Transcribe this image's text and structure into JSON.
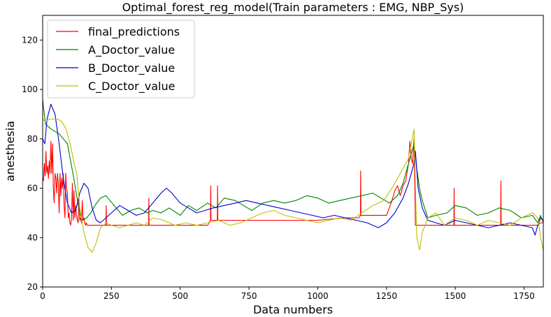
{
  "chart_data": {
    "type": "line",
    "title": "Optimal_forest_reg_model(Train parameters : EMG, NBP_Sys)",
    "xlabel": "Data numbers",
    "ylabel": "anesthesia",
    "xlim": [
      0,
      1820
    ],
    "ylim": [
      20,
      130
    ],
    "xticks": [
      0,
      250,
      500,
      750,
      1000,
      1250,
      1500,
      1750
    ],
    "yticks": [
      20,
      40,
      60,
      80,
      100,
      120
    ],
    "grid": false,
    "legend_position": "top-left",
    "series": [
      {
        "name": "final_predictions",
        "color": "#ff0000",
        "x": [
          0,
          3,
          6,
          9,
          12,
          15,
          18,
          21,
          24,
          27,
          30,
          33,
          36,
          39,
          42,
          45,
          48,
          51,
          54,
          57,
          60,
          63,
          66,
          69,
          72,
          75,
          78,
          81,
          84,
          87,
          90,
          93,
          96,
          99,
          102,
          105,
          108,
          111,
          114,
          117,
          120,
          123,
          126,
          129,
          132,
          135,
          138,
          141,
          144,
          147,
          150,
          153,
          156,
          159,
          162,
          165,
          168,
          171,
          174,
          177,
          180,
          183,
          186,
          189,
          195,
          200,
          230,
          231,
          232,
          240,
          300,
          385,
          386,
          387,
          395,
          500,
          600,
          610,
          611,
          612,
          625,
          635,
          636,
          637,
          645,
          700,
          800,
          900,
          950,
          1000,
          1100,
          1150,
          1155,
          1156,
          1157,
          1160,
          1200,
          1250,
          1270,
          1280,
          1290,
          1300,
          1310,
          1320,
          1330,
          1335,
          1340,
          1345,
          1350,
          1355,
          1360,
          1370,
          1400,
          1450,
          1495,
          1496,
          1497,
          1500,
          1550,
          1600,
          1665,
          1666,
          1667,
          1670,
          1700,
          1750,
          1790,
          1800,
          1810,
          1820
        ],
        "values": [
          64,
          63,
          70,
          65,
          75,
          66,
          69,
          64,
          71,
          66,
          79,
          66,
          78,
          60,
          54,
          66,
          64,
          58,
          66,
          62,
          50,
          66,
          57,
          64,
          60,
          66,
          53,
          48,
          66,
          60,
          58,
          48,
          50,
          46,
          45,
          48,
          62,
          47,
          59,
          48,
          53,
          49,
          47,
          46,
          57,
          47,
          48,
          46,
          55,
          47,
          48,
          46,
          45,
          46,
          45,
          45,
          45,
          45,
          45,
          45,
          45,
          45,
          45,
          45,
          45,
          45,
          45,
          53,
          45,
          45,
          45,
          45,
          56,
          45,
          45,
          45,
          45,
          47,
          61,
          47,
          47,
          47,
          61,
          47,
          47,
          47,
          47,
          47,
          47,
          47,
          48,
          48,
          49,
          67,
          49,
          49,
          49,
          49,
          55,
          59,
          61,
          57,
          61,
          63,
          70,
          79,
          72,
          70,
          80,
          45,
          45,
          45,
          45,
          45,
          45,
          60,
          45,
          45,
          45,
          45,
          45,
          63,
          45,
          45,
          45,
          45,
          45,
          45,
          46,
          46
        ]
      },
      {
        "name": "A_Doctor_value",
        "color": "#008000",
        "x": [
          0,
          10,
          30,
          60,
          90,
          110,
          125,
          135,
          145,
          160,
          175,
          190,
          210,
          230,
          260,
          290,
          320,
          350,
          380,
          400,
          430,
          460,
          500,
          530,
          560,
          600,
          630,
          660,
          700,
          730,
          760,
          800,
          840,
          880,
          920,
          960,
          1000,
          1040,
          1080,
          1120,
          1160,
          1200,
          1230,
          1260,
          1290,
          1310,
          1330,
          1350,
          1360,
          1370,
          1380,
          1400,
          1430,
          1470,
          1500,
          1540,
          1580,
          1620,
          1660,
          1700,
          1740,
          1780,
          1800,
          1810,
          1820
        ],
        "values": [
          96,
          86,
          84,
          82,
          78,
          66,
          56,
          50,
          47,
          48,
          50,
          53,
          56,
          57,
          53,
          49,
          51,
          52,
          50,
          51,
          50,
          52,
          49,
          53,
          51,
          54,
          52,
          56,
          55,
          53,
          51,
          54,
          55,
          54,
          55,
          57,
          56,
          54,
          55,
          56,
          57,
          58,
          56,
          54,
          57,
          62,
          70,
          78,
          68,
          60,
          55,
          48,
          49,
          50,
          53,
          52,
          49,
          50,
          52,
          51,
          48,
          49,
          46,
          49,
          46
        ]
      },
      {
        "name": "B_Doctor_value",
        "color": "#0000cc",
        "x": [
          0,
          8,
          16,
          30,
          45,
          60,
          75,
          90,
          105,
          120,
          135,
          150,
          165,
          180,
          195,
          210,
          230,
          250,
          280,
          310,
          340,
          370,
          400,
          430,
          450,
          470,
          500,
          530,
          560,
          590,
          620,
          660,
          700,
          740,
          780,
          820,
          860,
          900,
          940,
          980,
          1020,
          1060,
          1100,
          1140,
          1180,
          1220,
          1250,
          1280,
          1310,
          1330,
          1350,
          1355,
          1365,
          1380,
          1400,
          1430,
          1460,
          1500,
          1540,
          1580,
          1620,
          1660,
          1700,
          1740,
          1780,
          1790,
          1800,
          1810,
          1820
        ],
        "values": [
          80,
          78,
          88,
          94,
          90,
          78,
          64,
          54,
          50,
          51,
          58,
          62,
          60,
          52,
          47,
          46,
          48,
          50,
          53,
          51,
          49,
          50,
          54,
          58,
          60,
          58,
          54,
          52,
          50,
          51,
          52,
          53,
          54,
          55,
          54,
          53,
          52,
          51,
          50,
          49,
          48,
          49,
          48,
          47,
          46,
          44,
          46,
          50,
          56,
          62,
          70,
          75,
          60,
          52,
          47,
          46,
          45,
          47,
          46,
          45,
          44,
          45,
          46,
          45,
          44,
          41,
          45,
          48,
          47
        ]
      },
      {
        "name": "C_Doctor_value",
        "color": "#bfbf00",
        "x": [
          0,
          10,
          25,
          40,
          55,
          70,
          85,
          100,
          115,
          125,
          135,
          150,
          165,
          180,
          195,
          210,
          230,
          250,
          280,
          310,
          340,
          370,
          400,
          440,
          480,
          520,
          560,
          600,
          640,
          680,
          720,
          760,
          800,
          840,
          880,
          920,
          960,
          1000,
          1040,
          1080,
          1120,
          1160,
          1200,
          1240,
          1270,
          1300,
          1330,
          1350,
          1355,
          1360,
          1370,
          1380,
          1400,
          1430,
          1460,
          1500,
          1540,
          1580,
          1620,
          1660,
          1700,
          1740,
          1780,
          1800,
          1810,
          1820
        ],
        "values": [
          88,
          87,
          88,
          88,
          88,
          87,
          84,
          78,
          70,
          65,
          52,
          42,
          36,
          34,
          38,
          44,
          46,
          45,
          44,
          45,
          46,
          45,
          48,
          47,
          45,
          46,
          45,
          46,
          47,
          45,
          46,
          48,
          50,
          51,
          49,
          48,
          47,
          46,
          47,
          48,
          47,
          50,
          53,
          55,
          60,
          66,
          72,
          84,
          62,
          40,
          35,
          42,
          48,
          50,
          45,
          48,
          47,
          45,
          47,
          46,
          45,
          48,
          50,
          48,
          40,
          35
        ]
      }
    ]
  }
}
